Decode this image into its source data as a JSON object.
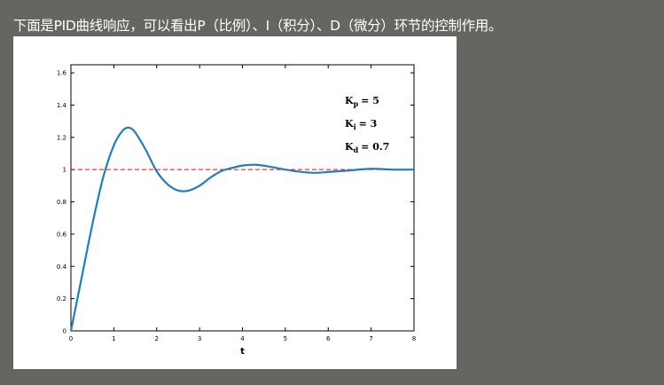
{
  "caption": "下面是PID曲线响应，可以看出P（比例）、I（积分）、D（微分）环节的控制作用。",
  "chart_data": {
    "type": "line",
    "xlabel": "t",
    "ylabel": "",
    "xlim": [
      0,
      8
    ],
    "ylim": [
      0,
      1.65
    ],
    "xticks": [
      "0",
      "1",
      "2",
      "3",
      "4",
      "5",
      "6",
      "7",
      "8"
    ],
    "yticks": [
      "0",
      "0.2",
      "0.4",
      "0.6",
      "0.8",
      "1",
      "1.2",
      "1.4",
      "1.6"
    ],
    "grid": false,
    "reference_line": {
      "y": 1,
      "style": "dashed",
      "color": "#ff0000"
    },
    "series": [
      {
        "color": "#1f7ec0",
        "x": [
          0,
          0.25,
          0.5,
          0.75,
          1.0,
          1.2,
          1.35,
          1.5,
          1.75,
          2.0,
          2.25,
          2.5,
          2.75,
          3.0,
          3.25,
          3.5,
          3.75,
          4.0,
          4.3,
          4.6,
          5.0,
          5.4,
          5.7,
          6.0,
          6.5,
          7.0,
          7.5,
          8.0
        ],
        "values": [
          0,
          0.33,
          0.66,
          0.95,
          1.15,
          1.24,
          1.26,
          1.23,
          1.12,
          0.99,
          0.91,
          0.87,
          0.87,
          0.9,
          0.95,
          0.99,
          1.01,
          1.025,
          1.03,
          1.02,
          1.0,
          0.985,
          0.98,
          0.985,
          0.995,
          1.005,
          1.0,
          1.0
        ]
      }
    ],
    "annotations": {
      "kp": {
        "label": "K",
        "sub": "p",
        "value": "= 5"
      },
      "ki": {
        "label": "K",
        "sub": "i",
        "value": "= 3"
      },
      "kd": {
        "label": "K",
        "sub": "d",
        "value": "= 0.7"
      }
    }
  }
}
